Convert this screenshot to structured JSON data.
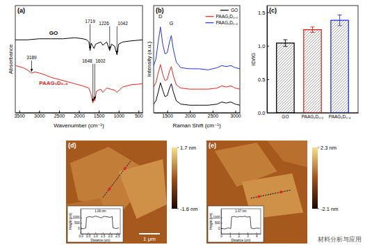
{
  "chart_data": [
    {
      "type": "line",
      "title": "(a)",
      "x_label": "Wavenumber (cm⁻¹)",
      "y_label": "Absorbance",
      "xlim": [
        3600,
        400
      ],
      "xticks": [
        3500,
        3000,
        2500,
        2000,
        1500,
        1000,
        500
      ],
      "ylim": [
        0,
        1
      ],
      "tick_labels": "x",
      "series": [
        {
          "name": "GO",
          "color": "#000000",
          "x": [
            3600,
            3300,
            3000,
            2700,
            2400,
            2100,
            1900,
            1800,
            1750,
            1719,
            1690,
            1650,
            1620,
            1580,
            1450,
            1400,
            1300,
            1226,
            1180,
            1100,
            1042,
            1000,
            900,
            700,
            400
          ],
          "values": [
            0.68,
            0.68,
            0.69,
            0.69,
            0.69,
            0.7,
            0.69,
            0.68,
            0.66,
            0.58,
            0.65,
            0.62,
            0.6,
            0.64,
            0.66,
            0.63,
            0.66,
            0.58,
            0.64,
            0.62,
            0.54,
            0.64,
            0.66,
            0.67,
            0.68
          ],
          "annotations": [
            {
              "text": "1719",
              "x": 1719,
              "y": 0.84
            },
            {
              "text": "1226",
              "x": 1226,
              "y": 0.82
            },
            {
              "text": "1042",
              "x": 1042,
              "y": 0.82
            }
          ]
        },
        {
          "name": "PAAG₁D₀.₄",
          "color": "#e3231c",
          "x": [
            3600,
            3400,
            3300,
            3189,
            3100,
            3000,
            2900,
            2700,
            2500,
            2300,
            2100,
            1900,
            1750,
            1700,
            1648,
            1620,
            1602,
            1560,
            1450,
            1400,
            1300,
            1200,
            1100,
            1042,
            900,
            700,
            400
          ],
          "values": [
            0.44,
            0.42,
            0.4,
            0.37,
            0.38,
            0.37,
            0.36,
            0.33,
            0.31,
            0.29,
            0.27,
            0.25,
            0.23,
            0.18,
            0.09,
            0.14,
            0.11,
            0.2,
            0.22,
            0.19,
            0.23,
            0.22,
            0.21,
            0.19,
            0.24,
            0.26,
            0.27
          ],
          "annotations": [
            {
              "text": "3189",
              "x": 3189,
              "y": 0.5
            },
            {
              "text": "1648",
              "x": 1648,
              "y": 0.47
            },
            {
              "text": "1602",
              "x": 1602,
              "y": 0.47
            }
          ]
        }
      ]
    },
    {
      "type": "line",
      "title": "(b)",
      "x_label": "Raman Shift (cm⁻¹)",
      "y_label": "Intensity (a.u.)",
      "xlim": [
        1200,
        3100
      ],
      "xticks": [
        1500,
        2000,
        2500,
        3000
      ],
      "ylim": [
        0,
        1
      ],
      "tick_labels": "x",
      "legend": "upper right",
      "annotations": [
        {
          "text": "D",
          "x": 1350,
          "y": 0.88
        },
        {
          "text": "G",
          "x": 1590,
          "y": 0.82
        }
      ],
      "series": [
        {
          "name": "GO",
          "color": "#000000",
          "x": [
            1200,
            1250,
            1300,
            1350,
            1400,
            1450,
            1500,
            1550,
            1590,
            1630,
            1700,
            1800,
            2000,
            2200,
            2400,
            2600,
            2700,
            2800,
            2900,
            3000,
            3100
          ],
          "values": [
            0.08,
            0.11,
            0.19,
            0.28,
            0.21,
            0.15,
            0.16,
            0.23,
            0.27,
            0.2,
            0.11,
            0.08,
            0.07,
            0.07,
            0.07,
            0.08,
            0.1,
            0.09,
            0.1,
            0.08,
            0.07
          ]
        },
        {
          "name": "PAAG₁D₀.₂",
          "color": "#e3231c",
          "x": [
            1200,
            1250,
            1300,
            1350,
            1400,
            1450,
            1500,
            1550,
            1590,
            1630,
            1700,
            1800,
            2000,
            2200,
            2400,
            2600,
            2700,
            2800,
            2900,
            3000,
            3100
          ],
          "values": [
            0.24,
            0.28,
            0.37,
            0.45,
            0.36,
            0.3,
            0.31,
            0.39,
            0.43,
            0.35,
            0.26,
            0.23,
            0.22,
            0.22,
            0.22,
            0.23,
            0.25,
            0.24,
            0.25,
            0.23,
            0.22
          ]
        },
        {
          "name": "PAAG₁D₀.₄",
          "color": "#2233dd",
          "x": [
            1200,
            1250,
            1300,
            1350,
            1400,
            1450,
            1500,
            1550,
            1590,
            1630,
            1700,
            1800,
            2000,
            2200,
            2400,
            2600,
            2700,
            2800,
            2900,
            3000,
            3100
          ],
          "values": [
            0.44,
            0.5,
            0.66,
            0.8,
            0.64,
            0.55,
            0.56,
            0.66,
            0.72,
            0.6,
            0.47,
            0.42,
            0.41,
            0.41,
            0.4,
            0.42,
            0.44,
            0.43,
            0.44,
            0.42,
            0.41
          ]
        }
      ]
    },
    {
      "type": "bar",
      "title": "(c)",
      "y_label": "ID/IG",
      "categories": [
        "GO",
        "PAAG₁D₀.₂",
        "PAAG₁D₀.₄"
      ],
      "values": [
        1.04,
        1.24,
        1.38
      ],
      "errors": [
        0.05,
        0.04,
        0.08
      ],
      "colors": [
        "#000000",
        "#e3231c",
        "#2233dd"
      ],
      "ylim": [
        0,
        1.6
      ],
      "yticks": [
        {
          "value": 0,
          "label": "0.0"
        },
        0.5,
        {
          "value": 1,
          "label": "1.0"
        },
        1.5
      ]
    },
    {
      "type": "image",
      "title": "(d)",
      "colorbar_range": [
        -1.6,
        1.7
      ],
      "colorbar_ticks": [
        {
          "value": 1.7,
          "label": "1.7 nm"
        },
        {
          "value": -1.6,
          "label": "-1.6 nm"
        }
      ],
      "scale_bar": "1 μm",
      "inset": {
        "type": "line",
        "x_label": "Distance (um)",
        "y_label": "Height (pm)",
        "color": "#000000",
        "annotations": [
          "1.06 nm"
        ],
        "xlim": [
          0,
          2.7
        ],
        "xticks": [
          {
            "value": 0,
            "label": "0.0"
          },
          0.5,
          {
            "value": 1,
            "label": "1.0"
          },
          1.5,
          {
            "value": 2,
            "label": "2.0"
          },
          2.5
        ],
        "ylim": [
          -500,
          1800
        ],
        "yticks": [
          0,
          500,
          1000
        ],
        "x": [
          0,
          0.2,
          0.35,
          0.4,
          0.6,
          0.8,
          1.0,
          1.2,
          1.4,
          1.6,
          1.8,
          2.0,
          2.15,
          2.2,
          2.4,
          2.6
        ],
        "values": [
          20,
          -40,
          30,
          1000,
          1080,
          1020,
          1120,
          1050,
          980,
          1100,
          1060,
          1010,
          1080,
          50,
          -20,
          30
        ]
      }
    },
    {
      "type": "image",
      "title": "(e)",
      "colorbar_range": [
        -2.1,
        2.3
      ],
      "colorbar_ticks": [
        {
          "value": 2.3,
          "label": "2.3 nm"
        },
        {
          "value": -2.1,
          "label": "-2.1 nm"
        }
      ],
      "inset": {
        "type": "line",
        "x_label": "Distance (um)",
        "y_label": "Height (pm)",
        "color": "#000000",
        "annotations": [
          "1.07 nm"
        ],
        "xlim": [
          0,
          4.5
        ],
        "xticks": [
          0,
          1,
          2,
          3,
          4
        ],
        "ylim": [
          -500,
          1800
        ],
        "yticks": [
          0,
          500,
          1000
        ],
        "x": [
          0,
          0.4,
          0.8,
          1.1,
          1.2,
          1.5,
          1.8,
          2.1,
          2.4,
          2.7,
          3.0,
          3.3,
          3.4,
          3.7,
          4.0,
          4.4
        ],
        "values": [
          0,
          -60,
          40,
          -20,
          1050,
          1100,
          1020,
          1090,
          1060,
          1110,
          1030,
          1080,
          30,
          -40,
          20,
          0
        ]
      }
    }
  ],
  "watermark": "材料分析与应用"
}
